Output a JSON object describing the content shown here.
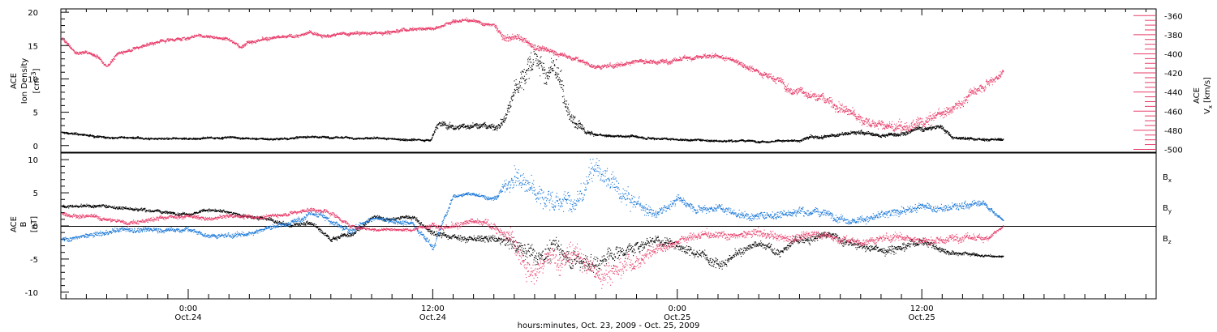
{
  "chart_data": [
    {
      "type": "scatter",
      "panel": "top",
      "left_axis": {
        "title_lines": [
          "ACE",
          "Ion Density"
        ],
        "unit_base": "[cm",
        "unit_sup": "-3",
        "unit_close": "]",
        "range": [
          -1,
          20.5
        ],
        "ticks": [
          0,
          5,
          10,
          15,
          20
        ],
        "tick_labels": [
          "0",
          "5",
          "10",
          "15",
          "20"
        ]
      },
      "right_axis": {
        "title_line1": "ACE",
        "title_v": "V",
        "title_v_sub": "x",
        "title_unit": "[km/s]",
        "range": [
          -503,
          -353
        ],
        "ticks": [
          -500,
          -480,
          -460,
          -440,
          -420,
          -400,
          -380,
          -360
        ],
        "tick_labels": [
          "-500",
          "-480",
          "-460",
          "-440",
          "-420",
          "-400",
          "-380",
          "-360"
        ],
        "color": "#e83d6a"
      },
      "series": [
        {
          "axis": "left",
          "color": "#000000",
          "x": [
            -6.2,
            -5,
            -4,
            -3,
            -2,
            -1,
            0,
            1,
            2,
            3,
            4,
            5,
            6,
            7,
            8,
            9,
            10,
            11,
            11.9,
            12.2,
            13,
            14,
            15,
            15.5,
            16,
            16.5,
            17,
            17.5,
            18,
            18.5,
            19,
            19.5,
            20,
            21,
            22,
            23,
            24,
            25,
            26,
            27,
            28,
            29,
            30,
            30.5,
            31,
            32,
            33,
            34,
            35,
            36,
            37,
            37.5,
            38,
            39,
            40
          ],
          "y": [
            2,
            1.6,
            1.2,
            1.3,
            1.1,
            1,
            1.1,
            1.2,
            1.3,
            1.1,
            1,
            1.2,
            1.4,
            1.3,
            1.2,
            1.1,
            1,
            1,
            0.9,
            3.5,
            2.7,
            3.2,
            2.8,
            4,
            8,
            11,
            14,
            10,
            12,
            6,
            3,
            2,
            1.6,
            1.5,
            1.4,
            1.2,
            1,
            0.9,
            0.8,
            0.8,
            0.7,
            0.8,
            0.7,
            1.5,
            1.3,
            1.7,
            2,
            1.5,
            2,
            2.5,
            2.8,
            1.3,
            1.2,
            1,
            0.9
          ],
          "jitter": [
            0.25,
            0.25,
            0.25,
            0.25,
            0.25,
            0.25,
            0.25,
            0.25,
            0.25,
            0.25,
            0.25,
            0.25,
            0.25,
            0.25,
            0.25,
            0.25,
            0.25,
            0.25,
            0.25,
            0.8,
            0.8,
            0.8,
            0.8,
            1,
            2.5,
            3.5,
            3.5,
            3,
            3.5,
            2,
            1.5,
            0.6,
            0.3,
            0.3,
            0.3,
            0.3,
            0.25,
            0.25,
            0.25,
            0.25,
            0.25,
            0.25,
            0.25,
            0.4,
            0.4,
            0.4,
            0.5,
            0.4,
            0.5,
            0.6,
            0.6,
            0.3,
            0.3,
            0.3,
            0.3
          ],
          "dt": 0.012
        },
        {
          "axis": "right",
          "color": "#e83d6a",
          "x": [
            -6.2,
            -5.5,
            -5,
            -4.5,
            -4,
            -3.5,
            -3,
            -2,
            -1,
            0,
            0.5,
            1,
            2,
            2.5,
            3,
            4,
            5,
            6,
            7,
            8,
            9,
            10,
            11,
            11.5,
            12,
            13,
            14,
            14.5,
            15,
            15.5,
            16,
            17,
            18,
            19,
            20,
            21,
            22,
            23,
            24,
            25,
            26,
            27,
            28,
            29,
            29.5,
            30,
            31,
            32,
            33,
            34,
            35,
            36,
            37,
            38,
            39,
            40
          ],
          "y": [
            -383,
            -400,
            -398,
            -402,
            -412,
            -400,
            -396,
            -390,
            -385,
            -383,
            -380,
            -382,
            -384,
            -392,
            -385,
            -384,
            -382,
            -378,
            -380,
            -378,
            -378,
            -376,
            -373,
            -373,
            -372,
            -366,
            -364,
            -368,
            -370,
            -385,
            -382,
            -392,
            -398,
            -405,
            -414,
            -412,
            -406,
            -408,
            -406,
            -402,
            -404,
            -408,
            -418,
            -426,
            -440,
            -438,
            -445,
            -455,
            -468,
            -475,
            -478,
            -474,
            -462,
            -450,
            -430,
            -418
          ],
          "jitter": [
            3,
            3,
            3,
            3,
            3,
            3,
            3,
            3,
            3,
            3,
            3,
            3,
            3,
            3,
            3,
            3,
            3,
            3,
            3,
            3,
            3,
            3,
            3,
            3,
            3,
            3,
            3,
            3,
            4,
            6,
            5,
            5,
            4,
            4,
            4,
            4,
            4,
            4,
            4,
            4,
            4,
            4,
            5,
            6,
            8,
            8,
            8,
            9,
            9,
            9,
            9,
            9,
            9,
            8,
            8,
            6
          ],
          "dt": 0.012
        }
      ]
    },
    {
      "type": "scatter",
      "panel": "bottom",
      "left_axis": {
        "title_lines": [
          "ACE",
          "B"
        ],
        "unit": "[nT]",
        "range": [
          -11,
          11
        ],
        "ticks": [
          -10,
          -5,
          0,
          5,
          10
        ],
        "tick_labels": [
          "-10",
          "-5",
          "0",
          "5",
          "10"
        ]
      },
      "legend": [
        {
          "label": "B",
          "sub": "x",
          "color": "#000000"
        },
        {
          "label": "B",
          "sub": "y",
          "color": "#1a78d8"
        },
        {
          "label": "B",
          "sub": "z",
          "color": "#e83d6a"
        }
      ],
      "series": [
        {
          "name": "Bx",
          "color": "#000000",
          "x": [
            -6.2,
            -5,
            -4,
            -3,
            -2,
            -1,
            0,
            1,
            2,
            3,
            4,
            5,
            6,
            7,
            8,
            9,
            10,
            11,
            12,
            13,
            14,
            15,
            16,
            17,
            18,
            19,
            20,
            21,
            22,
            23,
            24,
            25,
            26,
            27,
            28,
            29,
            30,
            31,
            32,
            33,
            34,
            35,
            36,
            37,
            38,
            39,
            40
          ],
          "y": [
            3,
            3.2,
            3,
            2.8,
            2.5,
            2,
            2,
            2.5,
            2,
            1.5,
            1,
            0,
            0.5,
            -2,
            -1,
            1.2,
            1,
            1.5,
            -1,
            -1.5,
            -2,
            -2,
            -3,
            -4,
            -3,
            -5,
            -6,
            -4,
            -3,
            -2,
            -3,
            -4,
            -5,
            -4,
            -3,
            -4,
            -2,
            -1,
            -2,
            -3,
            -3.5,
            -3,
            -2,
            -3.5,
            -4,
            -4.5,
            -4.5
          ],
          "jitter": [
            0.4,
            0.4,
            0.4,
            0.4,
            0.4,
            0.4,
            0.4,
            0.4,
            0.4,
            0.4,
            0.5,
            0.5,
            0.5,
            0.6,
            0.6,
            0.5,
            0.5,
            0.5,
            0.6,
            0.7,
            0.8,
            1,
            2,
            2.5,
            2.5,
            2.5,
            2.5,
            2,
            1.5,
            1.5,
            1.5,
            1.2,
            1.2,
            1,
            1,
            1,
            1,
            1,
            1,
            1,
            1,
            1,
            1,
            0.8,
            0.5,
            0.3,
            0.2
          ],
          "dt": 0.015
        },
        {
          "name": "By",
          "color": "#1a78d8",
          "x": [
            -6.2,
            -5,
            -4,
            -3,
            -2,
            -1,
            0,
            1,
            2,
            3,
            4,
            5,
            6,
            7,
            8,
            9,
            10,
            11,
            12,
            13,
            14,
            15,
            16,
            17,
            18,
            19,
            20,
            21,
            22,
            23,
            24,
            25,
            26,
            27,
            28,
            29,
            30,
            31,
            32,
            33,
            34,
            35,
            36,
            37,
            38,
            39,
            40
          ],
          "y": [
            -2,
            -1.5,
            -1,
            -0.5,
            -0.5,
            -0.5,
            -0.5,
            -1.5,
            -1.5,
            -1,
            0,
            0.5,
            2,
            1,
            -1,
            1,
            1,
            0.5,
            -3,
            4.5,
            5,
            4,
            8,
            5,
            4,
            3,
            9,
            5,
            3,
            2,
            4,
            3,
            3,
            2,
            1.5,
            2,
            2.5,
            2,
            1.5,
            1,
            1.5,
            2.5,
            3,
            2.5,
            3,
            3.5,
            0.8
          ],
          "jitter": [
            0.6,
            0.6,
            0.6,
            0.6,
            0.6,
            0.6,
            0.6,
            0.6,
            0.6,
            0.6,
            0.6,
            0.6,
            0.8,
            0.8,
            0.8,
            0.6,
            0.6,
            0.6,
            0.8,
            0.5,
            0.5,
            0.6,
            2.5,
            3,
            3,
            3,
            2.5,
            2.5,
            2,
            1.2,
            1,
            1,
            1,
            1,
            1,
            1,
            1,
            1,
            1,
            1,
            1,
            1,
            1,
            1,
            1,
            0.8,
            0.3
          ],
          "dt": 0.015
        },
        {
          "name": "Bz",
          "color": "#e83d6a",
          "x": [
            -6.2,
            -5,
            -4,
            -3,
            -2,
            -1,
            0,
            1,
            2,
            3,
            4,
            5,
            6,
            7,
            8,
            9,
            10,
            11,
            12,
            13,
            14,
            15,
            16,
            17,
            18,
            19,
            20,
            21,
            22,
            23,
            24,
            25,
            26,
            27,
            28,
            29,
            30,
            31,
            32,
            33,
            34,
            35,
            36,
            37,
            38,
            39,
            40
          ],
          "y": [
            2,
            1.5,
            1,
            0.5,
            1,
            1.5,
            1.5,
            1,
            1.5,
            1.5,
            1.5,
            2,
            2.5,
            2,
            0,
            -0.5,
            -0.5,
            -0.5,
            0.5,
            0,
            0.5,
            0,
            -3,
            -6,
            -5,
            -4,
            -7,
            -6,
            -5,
            -3,
            -2,
            -1.5,
            -1,
            -1.5,
            -1,
            -2,
            -1.5,
            -1,
            -2,
            -2.5,
            -2,
            -1.5,
            -2,
            -2,
            -1.5,
            -2,
            0
          ],
          "jitter": [
            0.5,
            0.5,
            0.5,
            0.5,
            0.5,
            0.5,
            0.5,
            0.5,
            0.5,
            0.5,
            0.5,
            0.5,
            0.5,
            0.6,
            0.5,
            0.4,
            0.4,
            0.4,
            0.6,
            0.8,
            0.8,
            1,
            2.5,
            3,
            3,
            3,
            2.5,
            2.5,
            2,
            1.5,
            1,
            1,
            1,
            1,
            1,
            1,
            1,
            1,
            1,
            1,
            1,
            1,
            1,
            1,
            1,
            0.8,
            0.3
          ],
          "dt": 0.015
        }
      ]
    }
  ],
  "x_axis": {
    "range": [
      -6.25,
      47.5
    ],
    "major_ticks": [
      0,
      12,
      24,
      36
    ],
    "tick_labels": [
      {
        "time": "0:00",
        "date": "Oct.24"
      },
      {
        "time": "12:00",
        "date": "Oct.24"
      },
      {
        "time": "0:00",
        "date": "Oct.25"
      },
      {
        "time": "12:00",
        "date": "Oct.25"
      }
    ],
    "xlabel": "hours:minutes, Oct. 23, 2009 - Oct. 25, 2009"
  }
}
